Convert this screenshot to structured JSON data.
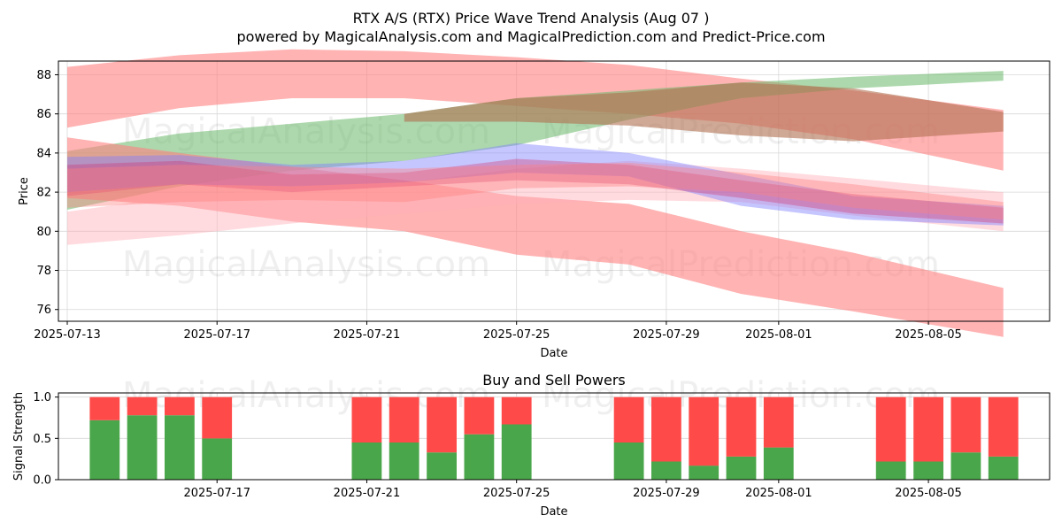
{
  "colors": {
    "buy": "#4aa64a",
    "sell": "#ff4a4a",
    "band_red": "#ff8080",
    "band_green": "#6ab86a",
    "band_brown": "#b07050",
    "band_blue": "#8080ff",
    "band_pink": "#ffb0b8",
    "band_magenta": "#d0306a",
    "grid": "#d8d8d8"
  },
  "watermarks": [
    "MagicalAnalysis.com",
    "MagicalPrediction.com"
  ],
  "chart_data": [
    {
      "type": "area",
      "title": "RTX A/S (RTX) Price Wave Trend Analysis (Aug 07 )",
      "subtitle": "powered by MagicalAnalysis.com and MagicalPrediction.com and Predict-Price.com",
      "xlabel": "Date",
      "ylabel": "Price",
      "xlim": [
        "2025-07-13",
        "2025-08-08"
      ],
      "ylim": [
        75.4,
        88.7
      ],
      "x_ticks": [
        "2025-07-13",
        "2025-07-17",
        "2025-07-21",
        "2025-07-25",
        "2025-07-29",
        "2025-08-01",
        "2025-08-05"
      ],
      "y_ticks": [
        76,
        78,
        80,
        82,
        84,
        86,
        88
      ],
      "grid": true,
      "series": [
        {
          "color_key": "band_red",
          "opacity": 0.6,
          "x": [
            "2025-07-13",
            "2025-07-16",
            "2025-07-19",
            "2025-07-22",
            "2025-07-25",
            "2025-07-28",
            "2025-07-31",
            "2025-08-03",
            "2025-08-07"
          ],
          "lower": [
            85.3,
            86.3,
            86.8,
            86.8,
            86.4,
            86.0,
            85.5,
            84.7,
            83.1
          ],
          "upper": [
            88.4,
            89.0,
            89.3,
            89.2,
            88.9,
            88.5,
            87.8,
            87.2,
            86.2
          ]
        },
        {
          "color_key": "band_green",
          "opacity": 0.55,
          "x": [
            "2025-07-13",
            "2025-07-16",
            "2025-07-19",
            "2025-07-22",
            "2025-07-25",
            "2025-07-28",
            "2025-07-31",
            "2025-08-03",
            "2025-08-07"
          ],
          "lower": [
            81.1,
            82.3,
            83.1,
            83.6,
            84.4,
            85.7,
            86.8,
            87.3,
            87.7
          ],
          "upper": [
            84.1,
            85.0,
            85.5,
            86.0,
            86.8,
            87.2,
            87.6,
            87.9,
            88.2
          ]
        },
        {
          "color_key": "band_brown",
          "opacity": 0.6,
          "x": [
            "2025-07-22",
            "2025-07-25",
            "2025-07-28",
            "2025-07-31",
            "2025-08-03",
            "2025-08-07"
          ],
          "lower": [
            85.6,
            85.6,
            85.4,
            84.9,
            84.6,
            85.1
          ],
          "upper": [
            86.0,
            86.8,
            87.1,
            87.6,
            87.3,
            86.1
          ]
        },
        {
          "color_key": "band_red",
          "opacity": 0.6,
          "x": [
            "2025-07-13",
            "2025-07-16",
            "2025-07-19",
            "2025-07-22",
            "2025-07-25",
            "2025-07-28",
            "2025-07-31",
            "2025-08-03",
            "2025-08-07"
          ],
          "lower": [
            81.7,
            81.3,
            80.5,
            80.0,
            78.8,
            78.3,
            76.8,
            75.9,
            74.6
          ],
          "upper": [
            84.8,
            84.0,
            83.3,
            82.6,
            81.8,
            81.4,
            80.0,
            78.9,
            77.1
          ]
        },
        {
          "color_key": "band_pink",
          "opacity": 0.45,
          "x": [
            "2025-07-13",
            "2025-07-16",
            "2025-07-19",
            "2025-07-22",
            "2025-07-25",
            "2025-07-28",
            "2025-07-31",
            "2025-08-03",
            "2025-08-07"
          ],
          "lower": [
            79.3,
            79.8,
            80.4,
            80.9,
            81.4,
            81.6,
            81.5,
            80.8,
            80.0
          ],
          "upper": [
            81.0,
            81.8,
            82.2,
            82.5,
            83.2,
            83.6,
            83.2,
            82.7,
            82.0
          ]
        },
        {
          "color_key": "band_blue",
          "opacity": 0.45,
          "x": [
            "2025-07-13",
            "2025-07-16",
            "2025-07-19",
            "2025-07-22",
            "2025-07-25",
            "2025-07-28",
            "2025-07-31",
            "2025-08-03",
            "2025-08-07"
          ],
          "lower": [
            82.0,
            82.4,
            82.3,
            82.5,
            83.0,
            82.8,
            81.3,
            80.6,
            80.3
          ],
          "upper": [
            83.8,
            83.9,
            83.4,
            83.6,
            84.5,
            84.0,
            82.9,
            81.8,
            81.3
          ]
        },
        {
          "color_key": "band_magenta",
          "opacity": 0.35,
          "x": [
            "2025-07-13",
            "2025-07-16",
            "2025-07-19",
            "2025-07-22",
            "2025-07-25",
            "2025-07-28",
            "2025-07-31",
            "2025-08-03",
            "2025-08-07"
          ],
          "lower": [
            81.8,
            82.4,
            82.0,
            82.3,
            82.6,
            82.4,
            81.7,
            80.9,
            80.4
          ],
          "upper": [
            83.4,
            83.6,
            82.9,
            83.0,
            83.7,
            83.4,
            82.6,
            81.9,
            81.2
          ]
        },
        {
          "color_key": "band_red",
          "opacity": 0.4,
          "x": [
            "2025-07-13",
            "2025-07-16",
            "2025-07-19",
            "2025-07-22",
            "2025-07-25",
            "2025-07-28",
            "2025-07-31",
            "2025-08-03",
            "2025-08-07"
          ],
          "lower": [
            81.2,
            81.5,
            81.6,
            81.5,
            82.2,
            82.3,
            82.0,
            81.2,
            80.6
          ],
          "upper": [
            83.2,
            83.4,
            83.3,
            83.2,
            83.4,
            83.5,
            83.0,
            82.4,
            81.5
          ]
        }
      ]
    },
    {
      "type": "bar",
      "title": "Buy and Sell Powers",
      "xlabel": "Date",
      "ylabel": "Signal Strength",
      "xlim": [
        "2025-07-13",
        "2025-08-08"
      ],
      "ylim": [
        0,
        1.05
      ],
      "x_ticks": [
        "2025-07-17",
        "2025-07-21",
        "2025-07-25",
        "2025-07-29",
        "2025-08-01",
        "2025-08-05"
      ],
      "y_ticks": [
        "0.0",
        "0.5",
        "1.0"
      ],
      "dates": [
        "2025-07-14",
        "2025-07-15",
        "2025-07-16",
        "2025-07-17",
        "2025-07-21",
        "2025-07-22",
        "2025-07-23",
        "2025-07-24",
        "2025-07-25",
        "2025-07-28",
        "2025-07-29",
        "2025-07-30",
        "2025-07-31",
        "2025-08-01",
        "2025-08-04",
        "2025-08-05",
        "2025-08-06",
        "2025-08-07"
      ],
      "series": [
        {
          "color_key": "buy",
          "values": [
            0.72,
            0.78,
            0.78,
            0.5,
            0.45,
            0.45,
            0.33,
            0.55,
            0.67,
            0.45,
            0.22,
            0.17,
            0.28,
            0.39,
            0.22,
            0.22,
            0.33,
            0.28
          ]
        },
        {
          "color_key": "sell",
          "values": [
            0.28,
            0.22,
            0.22,
            0.5,
            0.55,
            0.55,
            0.67,
            0.45,
            0.33,
            0.55,
            0.78,
            0.83,
            0.72,
            0.61,
            0.78,
            0.78,
            0.67,
            0.72
          ]
        }
      ]
    }
  ]
}
